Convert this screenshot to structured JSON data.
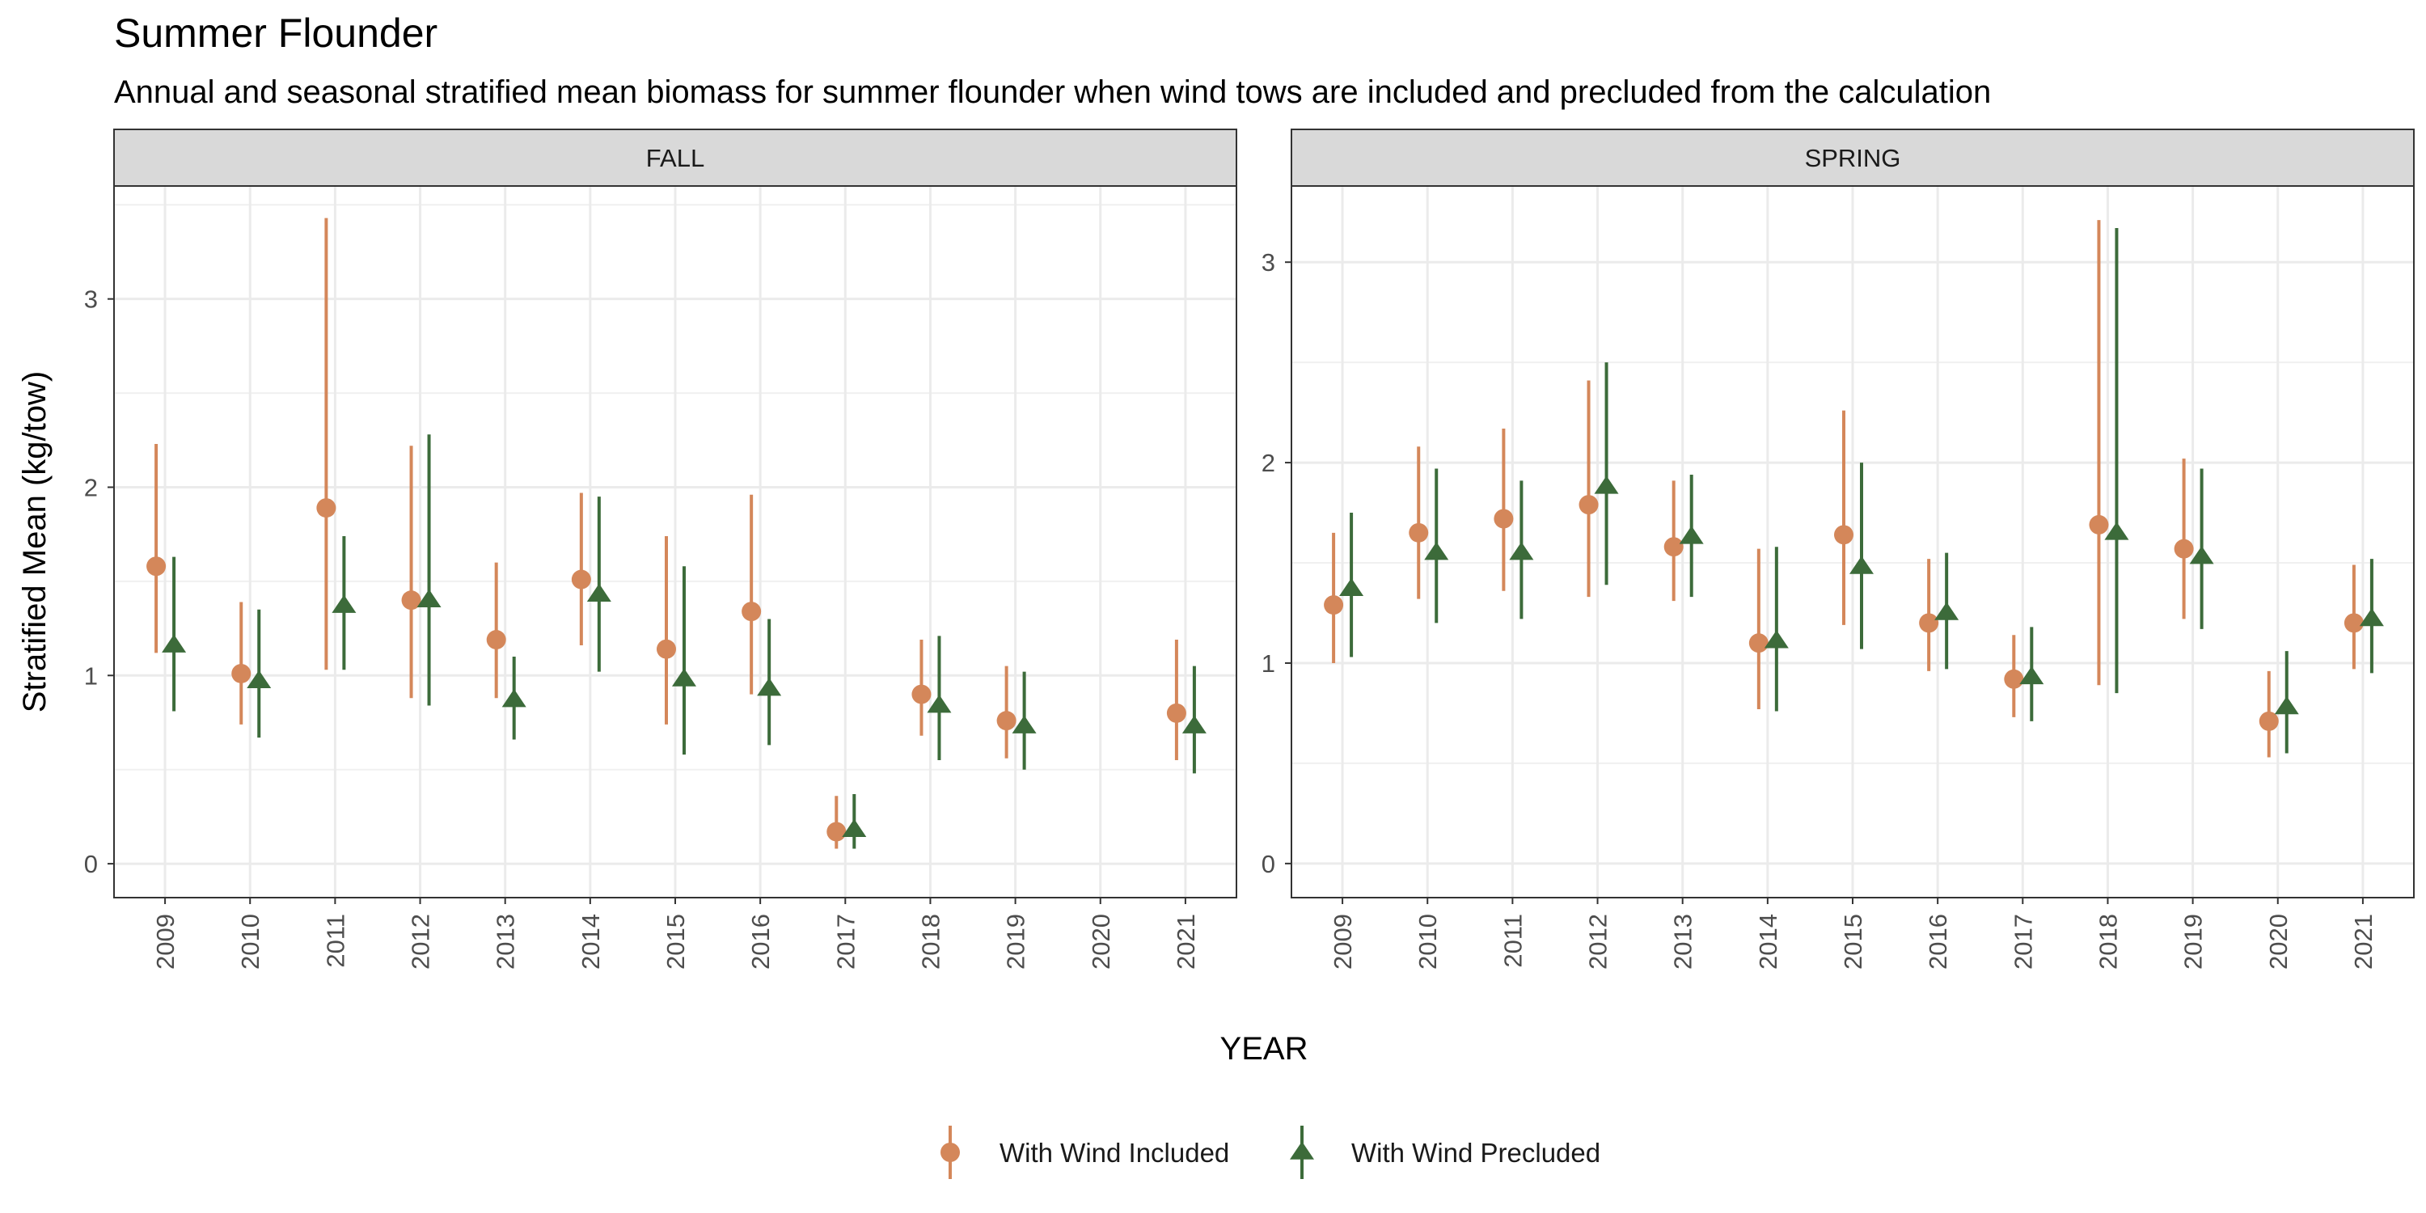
{
  "chart_data": {
    "type": "scatter",
    "title": "Summer Flounder",
    "subtitle": "Annual and seasonal stratified mean biomass for summer flounder when wind tows are included and precluded from the calculation",
    "xlabel": "YEAR",
    "ylabel": "Stratified Mean (kg/tow)",
    "grid": true,
    "legend_position": "bottom",
    "categories": [
      "2009",
      "2010",
      "2011",
      "2012",
      "2013",
      "2014",
      "2015",
      "2016",
      "2017",
      "2018",
      "2019",
      "2020",
      "2021"
    ],
    "legend": [
      {
        "name": "With Wind Included",
        "color": "#D4875A",
        "shape": "circle"
      },
      {
        "name": "With Wind Precluded",
        "color": "#3C6B3A",
        "shape": "triangle"
      }
    ],
    "panels": [
      {
        "name": "FALL",
        "ylim": [
          -0.18,
          3.6
        ],
        "yticks": [
          0,
          1,
          2,
          3
        ],
        "series": [
          {
            "name": "With Wind Included",
            "values": [
              1.58,
              1.01,
              1.89,
              1.4,
              1.19,
              1.51,
              1.14,
              1.34,
              0.17,
              0.9,
              0.76,
              null,
              0.8
            ],
            "lower": [
              1.12,
              0.74,
              1.03,
              0.88,
              0.88,
              1.16,
              0.74,
              0.9,
              0.08,
              0.68,
              0.56,
              null,
              0.55
            ],
            "upper": [
              2.23,
              1.39,
              3.43,
              2.22,
              1.6,
              1.97,
              1.74,
              1.96,
              0.36,
              1.19,
              1.05,
              null,
              1.19
            ]
          },
          {
            "name": "With Wind Precluded",
            "values": [
              1.16,
              0.97,
              1.37,
              1.4,
              0.87,
              1.43,
              0.98,
              0.93,
              0.18,
              0.84,
              0.73,
              null,
              0.73
            ],
            "lower": [
              0.81,
              0.67,
              1.03,
              0.84,
              0.66,
              1.02,
              0.58,
              0.63,
              0.08,
              0.55,
              0.5,
              null,
              0.48
            ],
            "upper": [
              1.63,
              1.35,
              1.74,
              2.28,
              1.1,
              1.95,
              1.58,
              1.3,
              0.37,
              1.21,
              1.02,
              null,
              1.05
            ]
          }
        ]
      },
      {
        "name": "SPRING",
        "ylim": [
          -0.17,
          3.38
        ],
        "yticks": [
          0,
          1,
          2,
          3
        ],
        "series": [
          {
            "name": "With Wind Included",
            "values": [
              1.29,
              1.65,
              1.72,
              1.79,
              1.58,
              1.1,
              1.64,
              1.2,
              0.92,
              1.69,
              1.57,
              0.71,
              1.2
            ],
            "lower": [
              1.0,
              1.32,
              1.36,
              1.33,
              1.31,
              0.77,
              1.19,
              0.96,
              0.73,
              0.89,
              1.22,
              0.53,
              0.97
            ],
            "upper": [
              1.65,
              2.08,
              2.17,
              2.41,
              1.91,
              1.57,
              2.26,
              1.52,
              1.14,
              3.21,
              2.02,
              0.96,
              1.49
            ]
          },
          {
            "name": "With Wind Precluded",
            "values": [
              1.37,
              1.55,
              1.55,
              1.88,
              1.63,
              1.11,
              1.48,
              1.25,
              0.93,
              1.65,
              1.53,
              0.78,
              1.22
            ],
            "lower": [
              1.03,
              1.2,
              1.22,
              1.39,
              1.33,
              0.76,
              1.07,
              0.97,
              0.71,
              0.85,
              1.17,
              0.55,
              0.95
            ],
            "upper": [
              1.75,
              1.97,
              1.91,
              2.5,
              1.94,
              1.58,
              2.0,
              1.55,
              1.18,
              3.17,
              1.97,
              1.06,
              1.52
            ]
          }
        ]
      }
    ]
  }
}
